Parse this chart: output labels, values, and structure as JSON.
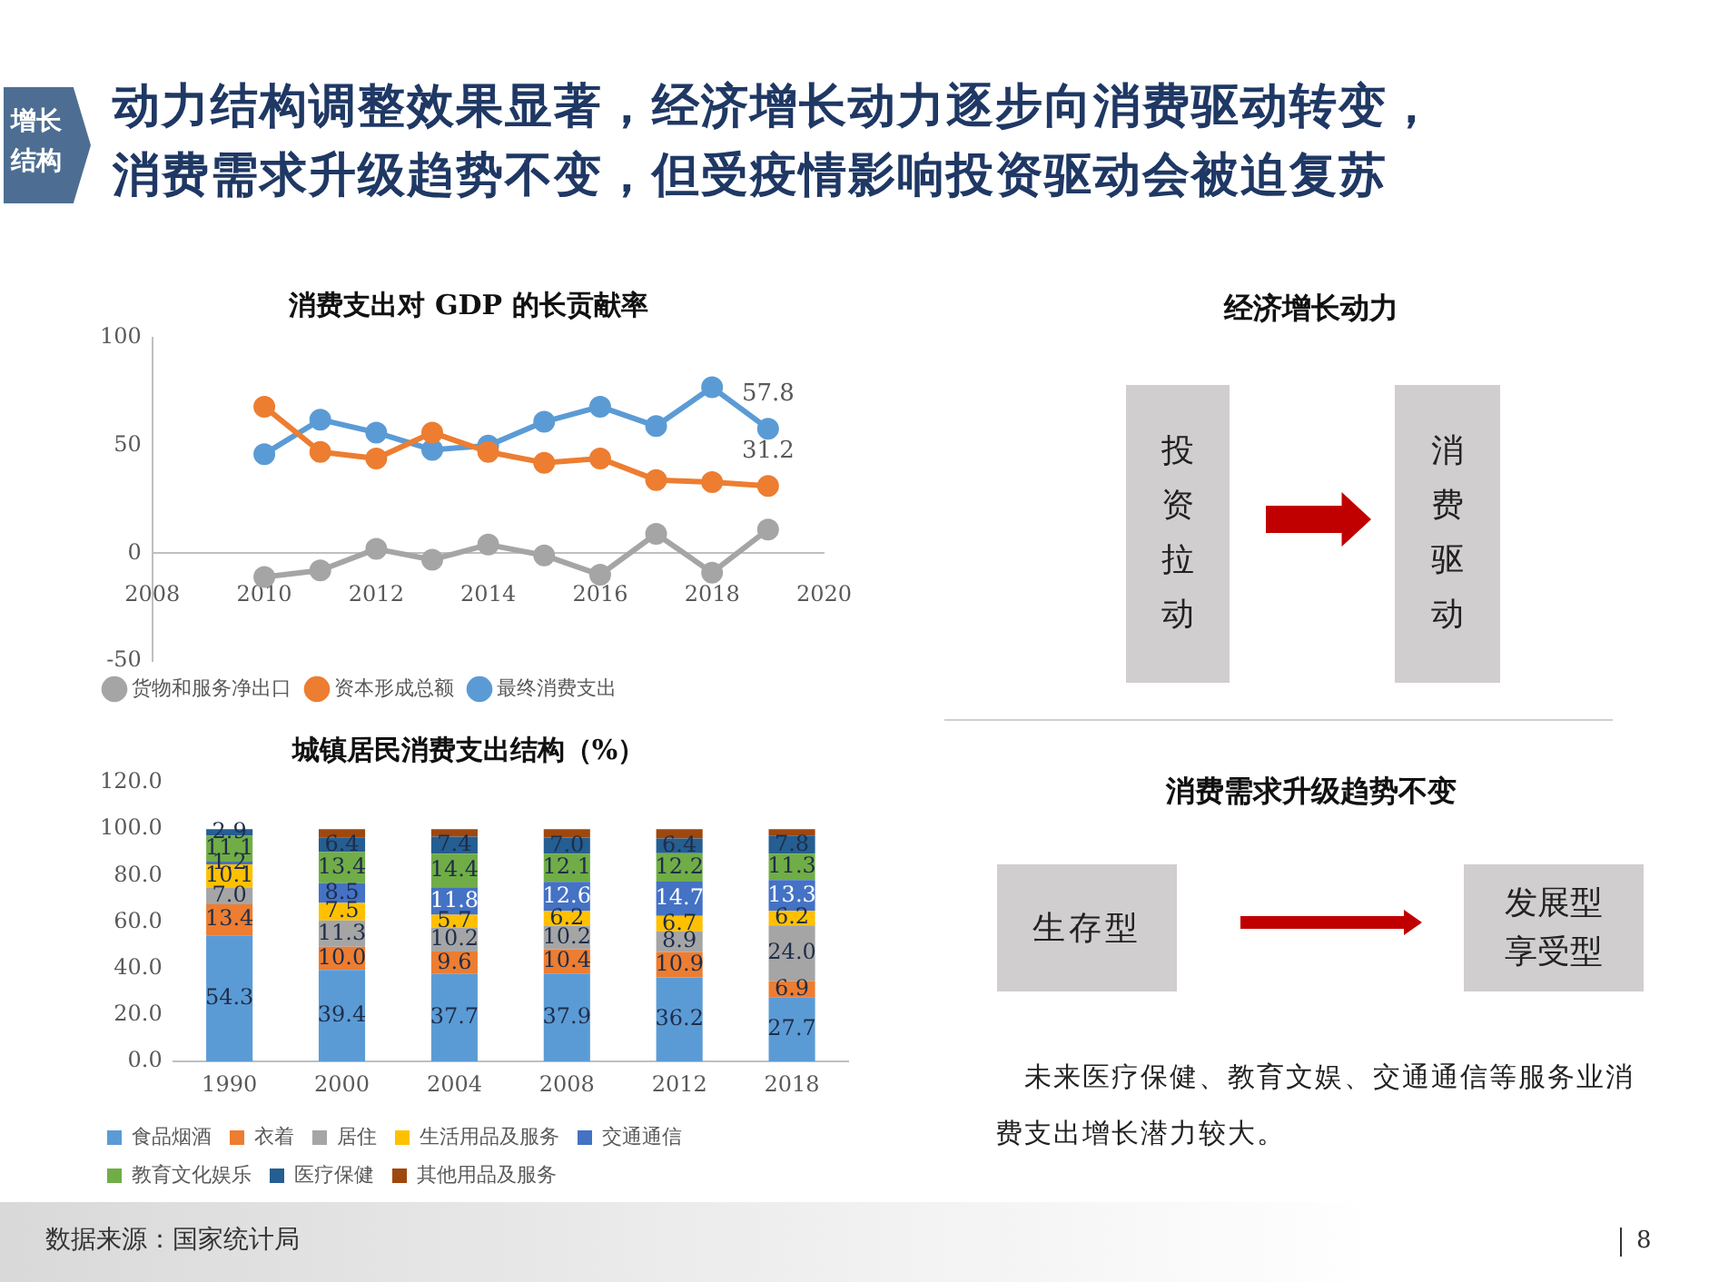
{
  "chart_data": [
    {
      "type": "other",
      "title": "动力结构调整效果显著，经济增长动力逐步向消费驱动转变，消费需求升级趋势不变，但受疫情影响投资驱动会被迫复苏",
      "annotations": [
        "增长结构",
        "数据来源：国家统计局",
        "8"
      ]
    },
    {
      "type": "line",
      "title": "消费支出对 GDP 的长贡献率",
      "x": [
        2010,
        2011,
        2012,
        2013,
        2014,
        2015,
        2016,
        2017,
        2018,
        2019
      ],
      "series": [
        {
          "name": "最终消费支出",
          "color": "#5b9bd5",
          "values": [
            46,
            62,
            56,
            48,
            50,
            61,
            68,
            59,
            77,
            57.8
          ],
          "value_labels": [
            null,
            null,
            null,
            null,
            null,
            null,
            null,
            null,
            null,
            "57.8"
          ]
        },
        {
          "name": "资本形成总额",
          "color": "#ed7d31",
          "values": [
            68,
            47,
            44,
            56,
            47,
            42,
            44,
            34,
            33,
            31.2
          ],
          "value_labels": [
            null,
            null,
            null,
            null,
            null,
            null,
            null,
            null,
            null,
            "31.2"
          ]
        },
        {
          "name": "货物和服务净出口",
          "color": "#a5a5a5",
          "values": [
            -11,
            -8,
            2,
            -3,
            4,
            -1,
            -10,
            9,
            -9,
            11
          ]
        }
      ],
      "xlim": [
        2008,
        2020
      ],
      "xticks": [
        2008,
        2010,
        2012,
        2014,
        2016,
        2018,
        2020
      ],
      "ylim": [
        -50,
        100
      ],
      "yticks": [
        -50,
        0,
        50,
        100
      ],
      "marker": "circle",
      "legend": "bottom"
    },
    {
      "type": "bar",
      "title": "城镇居民消费支出结构（%）",
      "stacked": true,
      "categories": [
        "1990",
        "2000",
        "2004",
        "2008",
        "2012",
        "2018"
      ],
      "series": [
        {
          "name": "食品烟酒",
          "color": "#5b9bd5",
          "values": [
            54.3,
            39.4,
            37.7,
            37.9,
            36.2,
            27.7
          ],
          "value_labels": [
            "54.3",
            "39.4",
            "37.7",
            "37.9",
            "36.2",
            "27.7"
          ]
        },
        {
          "name": "衣着",
          "color": "#ed7d31",
          "values": [
            13.4,
            10.0,
            9.6,
            10.4,
            10.9,
            6.9
          ],
          "value_labels": [
            "13.4",
            "10.0",
            "9.6",
            "10.4",
            "10.9",
            "6.9"
          ]
        },
        {
          "name": "居住",
          "color": "#a5a5a5",
          "values": [
            7.0,
            11.3,
            10.2,
            10.2,
            8.9,
            24.0
          ],
          "value_labels": [
            "7.0",
            "11.3",
            "10.2",
            "10.2",
            "8.9",
            "24.0"
          ]
        },
        {
          "name": "生活用品及服务",
          "color": "#ffc000",
          "values": [
            10.1,
            7.5,
            5.7,
            6.2,
            6.7,
            6.2
          ],
          "value_labels": [
            "10.1",
            "7.5",
            "5.7",
            "6.2",
            "6.7",
            "6.2"
          ]
        },
        {
          "name": "交通通信",
          "color": "#4472c4",
          "values": [
            1.2,
            8.5,
            11.8,
            12.6,
            14.7,
            13.3
          ],
          "value_labels": [
            "1.2",
            "8.5",
            "11.8",
            "12.6",
            "14.7",
            "13.3"
          ]
        },
        {
          "name": "教育文化娱乐",
          "color": "#70ad47",
          "values": [
            11.1,
            13.4,
            14.4,
            12.1,
            12.2,
            11.3
          ],
          "value_labels": [
            "11.1",
            "13.4",
            "14.4",
            "12.1",
            "12.2",
            "11.3"
          ]
        },
        {
          "name": "医疗保健",
          "color": "#255e91",
          "values": [
            2.9,
            6.4,
            7.4,
            7.0,
            6.4,
            7.8
          ],
          "value_labels": [
            "2.9",
            "6.4",
            "7.4",
            "7.0",
            "6.4",
            "7.8"
          ]
        },
        {
          "name": "其他用品及服务",
          "color": "#9e480e",
          "values": [
            null,
            3.5,
            3.2,
            3.6,
            4.0,
            2.8
          ]
        }
      ],
      "ylim": [
        0,
        120
      ],
      "yticks": [
        {
          "value": 0,
          "label": "0.0"
        },
        {
          "value": 20,
          "label": "20.0"
        },
        {
          "value": 40,
          "label": "40.0"
        },
        {
          "value": 60,
          "label": "60.0"
        },
        {
          "value": 80,
          "label": "80.0"
        },
        {
          "value": 100,
          "label": "100.0"
        },
        {
          "value": 120,
          "label": "120.0"
        }
      ],
      "legend": "bottom"
    },
    {
      "type": "other",
      "title": "经济增长动力",
      "annotations": [
        "投资拉动",
        "消费驱动",
        "消费需求升级趋势不变",
        "生存型",
        "发展型享受型",
        "未来医疗保健、教育文娱、交通通信等服务业消费支出增长潜力较大。"
      ]
    }
  ]
}
